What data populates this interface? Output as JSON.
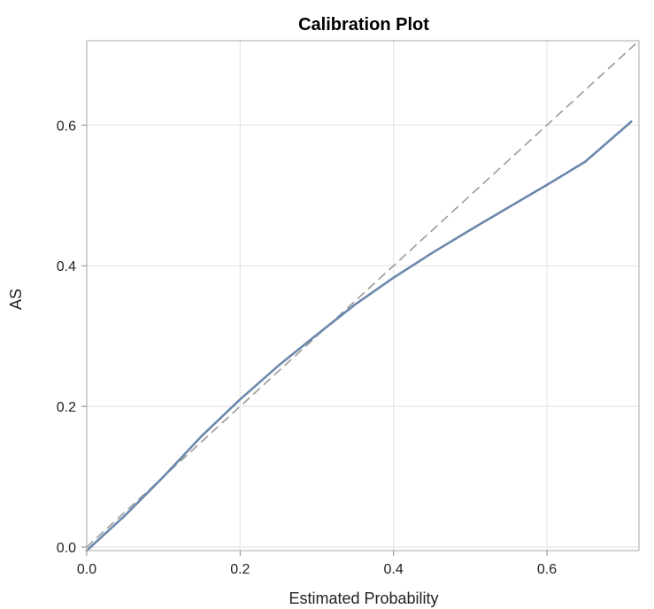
{
  "chart_data": {
    "type": "line",
    "title": "Calibration Plot",
    "xlabel": "Estimated Probability",
    "ylabel": "AS",
    "xlim": [
      0.0,
      0.72
    ],
    "ylim": [
      -0.005,
      0.72
    ],
    "xticks": [
      0.0,
      0.2,
      0.4,
      0.6
    ],
    "yticks": [
      0.0,
      0.2,
      0.4,
      0.6
    ],
    "xtick_labels": [
      "0.0",
      "0.2",
      "0.4",
      "0.6"
    ],
    "ytick_labels": [
      "0.0",
      "0.2",
      "0.4",
      "0.6"
    ],
    "grid": true,
    "series": [
      {
        "style": "solid",
        "color": "#6b88ad",
        "x": [
          0.0,
          0.05,
          0.1,
          0.15,
          0.2,
          0.25,
          0.3,
          0.35,
          0.4,
          0.45,
          0.5,
          0.55,
          0.6,
          0.65,
          0.71
        ],
        "y": [
          -0.005,
          0.045,
          0.1,
          0.158,
          0.21,
          0.258,
          0.302,
          0.345,
          0.383,
          0.418,
          0.451,
          0.483,
          0.515,
          0.548,
          0.605
        ]
      },
      {
        "style": "dashed",
        "color": "#9a9a9a",
        "x": [
          0.0,
          0.715
        ],
        "y": [
          0.0,
          0.715
        ]
      }
    ]
  }
}
